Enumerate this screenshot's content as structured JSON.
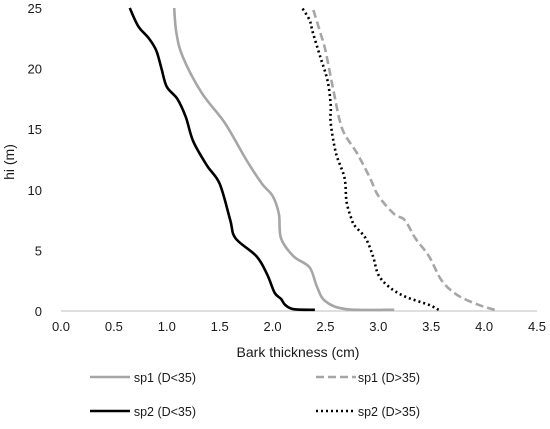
{
  "chart_data": {
    "type": "line",
    "title": "",
    "xlabel": "Bark thickness (cm)",
    "ylabel": "hi (m)",
    "xlim": [
      0.0,
      4.5
    ],
    "ylim": [
      0,
      25
    ],
    "x_ticks": [
      "0.0",
      "0.5",
      "1.0",
      "1.5",
      "2.0",
      "2.5",
      "3.0",
      "3.5",
      "4.0",
      "4.5"
    ],
    "y_ticks": [
      "0",
      "5",
      "10",
      "15",
      "20",
      "25"
    ],
    "grid": false,
    "legend_position": "bottom",
    "series": [
      {
        "name": "sp1 (D<35)",
        "color": "#a6a6a6",
        "dash": "solid",
        "points": [
          [
            3.15,
            0.1
          ],
          [
            2.7,
            0.15
          ],
          [
            2.5,
            0.8
          ],
          [
            2.42,
            2
          ],
          [
            2.35,
            3.6
          ],
          [
            2.2,
            4.5
          ],
          [
            2.08,
            6
          ],
          [
            2.06,
            8
          ],
          [
            2.0,
            9.5
          ],
          [
            1.9,
            10.5
          ],
          [
            1.75,
            12.5
          ],
          [
            1.55,
            15.5
          ],
          [
            1.33,
            18
          ],
          [
            1.15,
            21
          ],
          [
            1.09,
            23
          ],
          [
            1.07,
            25
          ]
        ]
      },
      {
        "name": "sp1 (D>35)",
        "color": "#a6a6a6",
        "dash": "dashed",
        "points": [
          [
            4.1,
            0.1
          ],
          [
            3.95,
            0.5
          ],
          [
            3.75,
            1.3
          ],
          [
            3.6,
            2.5
          ],
          [
            3.48,
            4.5
          ],
          [
            3.35,
            6
          ],
          [
            3.25,
            7.5
          ],
          [
            3.15,
            8
          ],
          [
            3.0,
            9.5
          ],
          [
            2.92,
            11
          ],
          [
            2.8,
            13
          ],
          [
            2.66,
            15
          ],
          [
            2.58,
            18
          ],
          [
            2.5,
            21.5
          ],
          [
            2.45,
            23
          ],
          [
            2.38,
            25
          ]
        ]
      },
      {
        "name": "sp2 (D<35)",
        "color": "#000000",
        "dash": "solid",
        "points": [
          [
            2.4,
            0.1
          ],
          [
            2.2,
            0.15
          ],
          [
            2.12,
            0.5
          ],
          [
            2.08,
            1
          ],
          [
            2.02,
            1.5
          ],
          [
            1.95,
            3
          ],
          [
            1.85,
            4.5
          ],
          [
            1.65,
            6
          ],
          [
            1.6,
            7.5
          ],
          [
            1.5,
            10.5
          ],
          [
            1.38,
            12
          ],
          [
            1.25,
            14
          ],
          [
            1.18,
            16
          ],
          [
            1.1,
            17.5
          ],
          [
            1.0,
            18.5
          ],
          [
            0.95,
            20
          ],
          [
            0.9,
            21.5
          ],
          [
            0.83,
            22.5
          ],
          [
            0.73,
            23.5
          ],
          [
            0.65,
            25
          ]
        ]
      },
      {
        "name": "sp2 (D>35)",
        "color": "#000000",
        "dash": "dotted",
        "points": [
          [
            3.57,
            0.1
          ],
          [
            3.48,
            0.5
          ],
          [
            3.25,
            1.2
          ],
          [
            3.1,
            2
          ],
          [
            3.0,
            3
          ],
          [
            2.95,
            4.5
          ],
          [
            2.88,
            6
          ],
          [
            2.78,
            7
          ],
          [
            2.75,
            7.5
          ],
          [
            2.7,
            9
          ],
          [
            2.68,
            11
          ],
          [
            2.6,
            13
          ],
          [
            2.55,
            15.5
          ],
          [
            2.55,
            17
          ],
          [
            2.52,
            19
          ],
          [
            2.45,
            21
          ],
          [
            2.38,
            23
          ],
          [
            2.35,
            24
          ],
          [
            2.28,
            25
          ]
        ]
      }
    ]
  }
}
